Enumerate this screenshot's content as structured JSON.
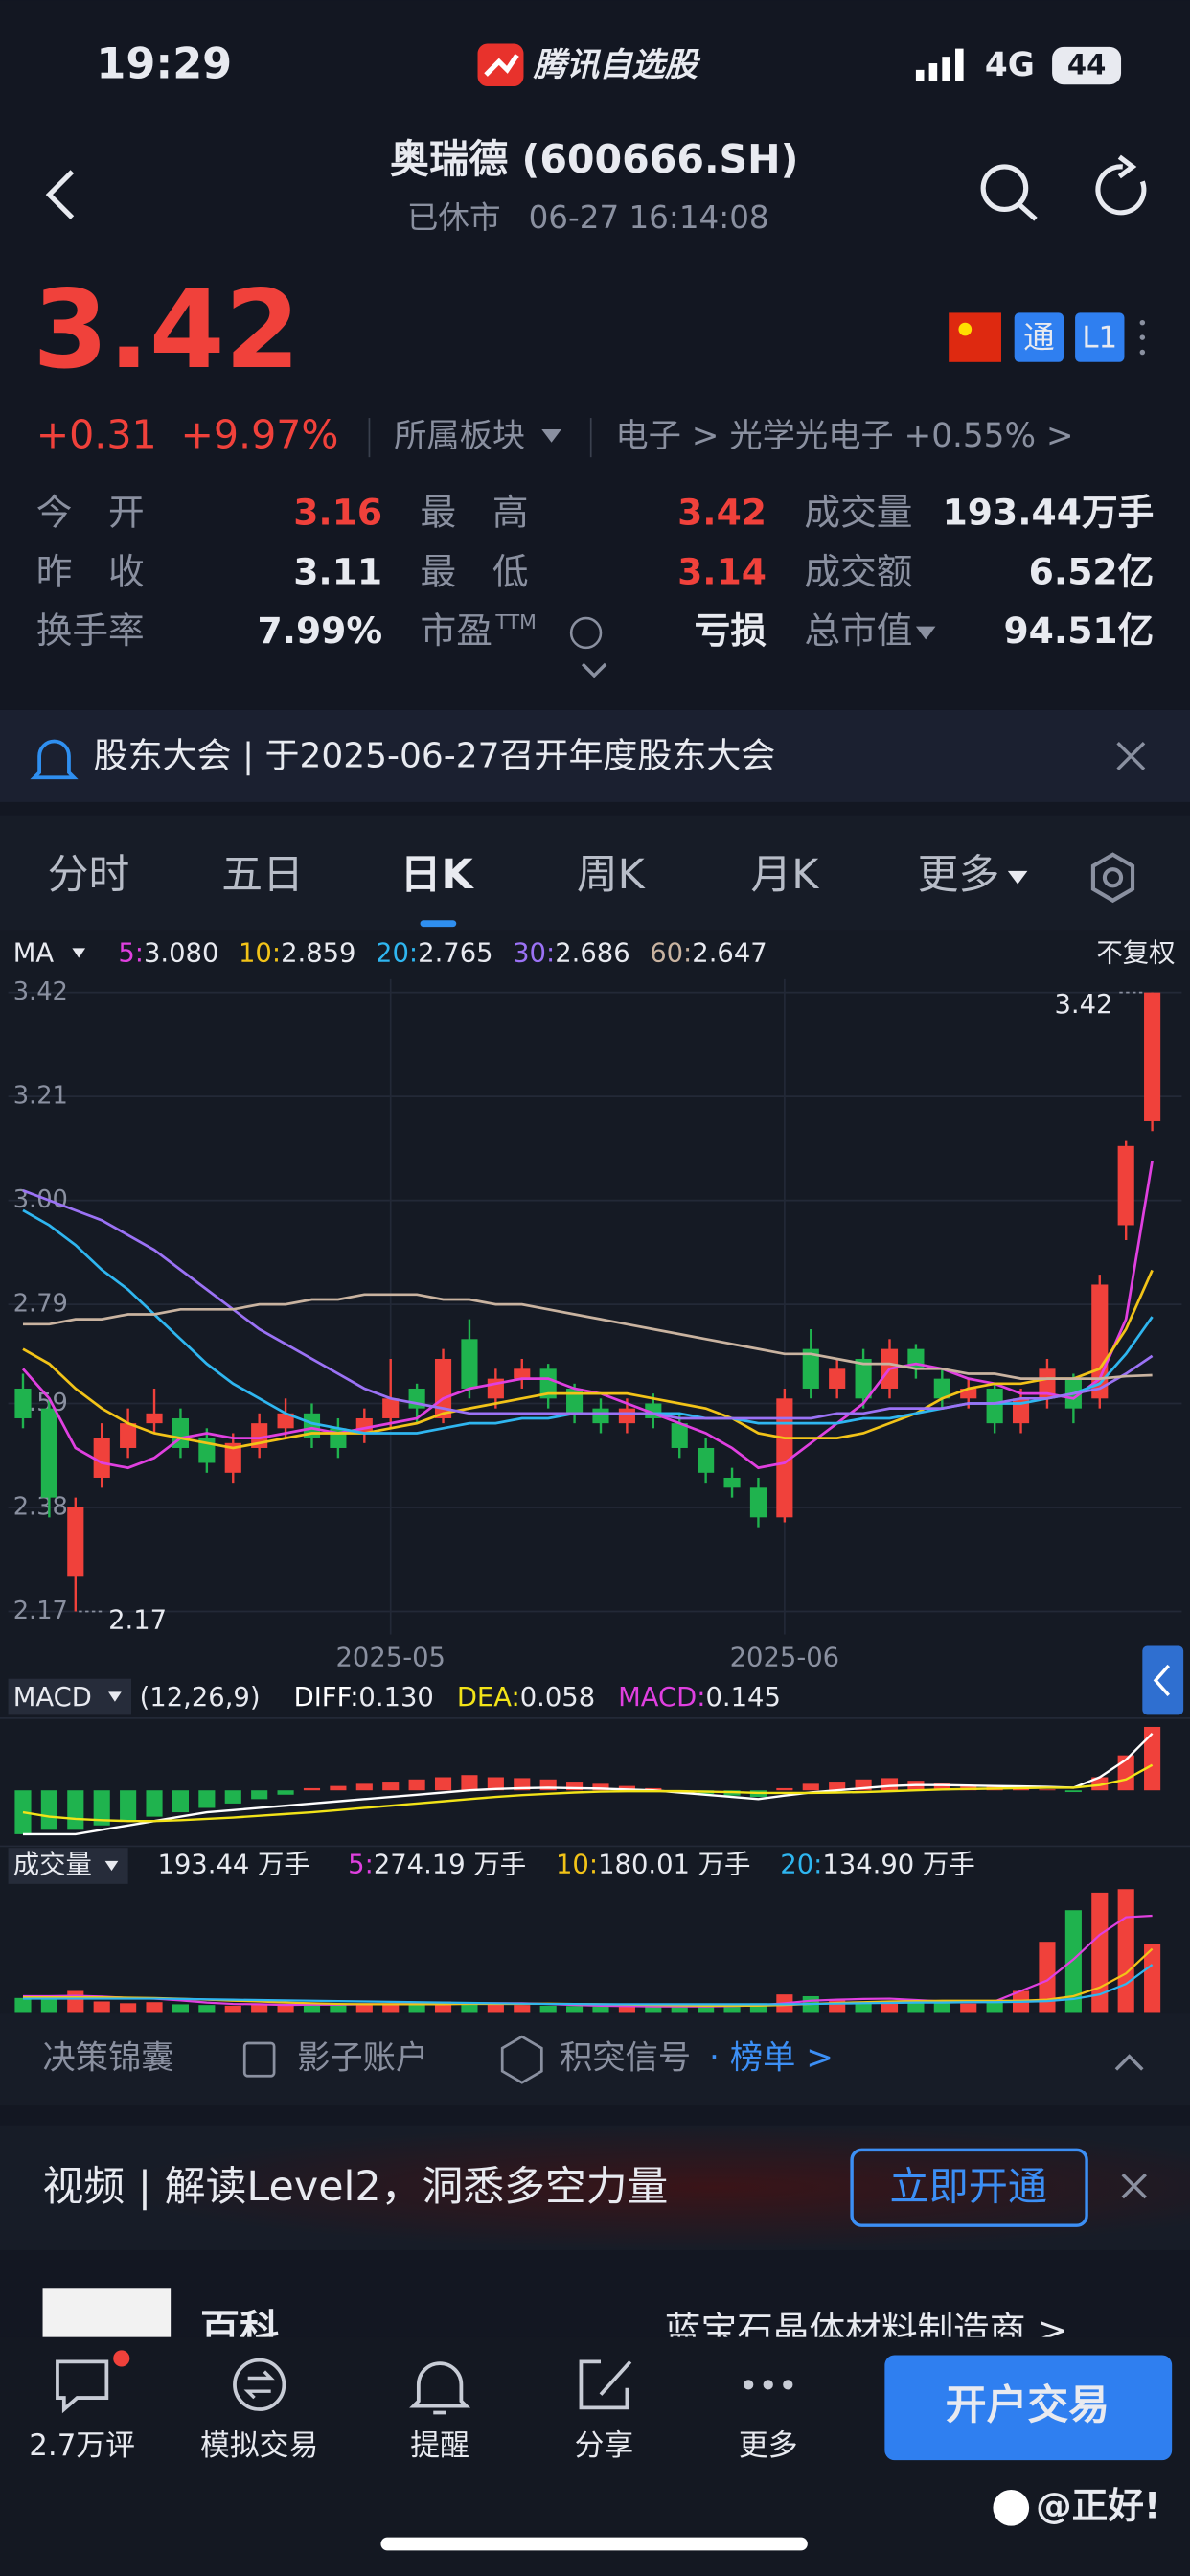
{
  "status": {
    "time": "19:29",
    "app": "腾讯自选股",
    "network": "4G",
    "battery": "44"
  },
  "header": {
    "title": "奥瑞德 (600666.SH)",
    "status": "已休市",
    "datetime": "06-27 16:14:08"
  },
  "quote": {
    "price": "3.42",
    "change": "+0.31",
    "change_pct": "+9.97%",
    "sector_menu": "所属板块",
    "sector_path": "电子 > 光学光电子 +0.55% >",
    "badges": [
      "通",
      "L1"
    ]
  },
  "stats": [
    [
      {
        "label": "今　开",
        "value": "3.16",
        "color": "#f0413b"
      },
      {
        "label": "最　高",
        "value": "3.42",
        "color": "#f0413b"
      },
      {
        "label": "成交量",
        "value": "193.44万手"
      }
    ],
    [
      {
        "label": "昨　收",
        "value": "3.11"
      },
      {
        "label": "最　低",
        "value": "3.14",
        "color": "#f0413b"
      },
      {
        "label": "成交额",
        "value": "6.52亿"
      }
    ],
    [
      {
        "label": "换手率",
        "value": "7.99%"
      },
      {
        "label": "市盈",
        "sup": "TTM",
        "value": "亏损"
      },
      {
        "label": "总市值",
        "value": "94.51亿"
      }
    ]
  ],
  "notice": "股东大会 | 于2025-06-27召开年度股东大会",
  "tabs": [
    "分时",
    "五日",
    "日K",
    "周K",
    "月K",
    "更多"
  ],
  "ma_header": {
    "name": "MA",
    "right": "不复权"
  },
  "chart_data": [
    {
      "type": "candlestick",
      "up_color": "#f0413b",
      "down_color": "#1fb34e",
      "categories": [
        null,
        null,
        null,
        null,
        null,
        null,
        null,
        null,
        null,
        null,
        null,
        null,
        null,
        null,
        "2025-05",
        null,
        null,
        null,
        null,
        null,
        null,
        null,
        null,
        null,
        null,
        null,
        null,
        null,
        null,
        "2025-06",
        null,
        null,
        null,
        null,
        null,
        null,
        null,
        null,
        null,
        null,
        null,
        null,
        null,
        null
      ],
      "open": [
        2.62,
        2.58,
        2.24,
        2.44,
        2.5,
        2.55,
        2.56,
        2.52,
        2.45,
        2.5,
        2.54,
        2.57,
        2.54,
        2.53,
        2.56,
        2.62,
        2.56,
        2.72,
        2.6,
        2.64,
        2.66,
        2.62,
        2.58,
        2.55,
        2.59,
        2.55,
        2.5,
        2.44,
        2.42,
        2.36,
        2.7,
        2.62,
        2.68,
        2.62,
        2.7,
        2.64,
        2.6,
        2.62,
        2.55,
        2.6,
        2.64,
        2.6,
        2.95,
        3.16
      ],
      "close": [
        2.56,
        2.4,
        2.38,
        2.52,
        2.55,
        2.57,
        2.5,
        2.47,
        2.51,
        2.55,
        2.57,
        2.52,
        2.5,
        2.56,
        2.6,
        2.58,
        2.68,
        2.62,
        2.64,
        2.66,
        2.6,
        2.57,
        2.55,
        2.58,
        2.56,
        2.5,
        2.45,
        2.42,
        2.36,
        2.6,
        2.62,
        2.66,
        2.6,
        2.7,
        2.66,
        2.6,
        2.62,
        2.55,
        2.6,
        2.66,
        2.58,
        2.83,
        3.11,
        3.42
      ],
      "high": [
        2.65,
        2.6,
        2.4,
        2.55,
        2.58,
        2.62,
        2.58,
        2.54,
        2.53,
        2.57,
        2.6,
        2.59,
        2.56,
        2.58,
        2.68,
        2.63,
        2.7,
        2.76,
        2.66,
        2.68,
        2.67,
        2.63,
        2.6,
        2.6,
        2.61,
        2.57,
        2.52,
        2.46,
        2.44,
        2.62,
        2.74,
        2.68,
        2.7,
        2.72,
        2.71,
        2.66,
        2.64,
        2.63,
        2.62,
        2.68,
        2.65,
        2.85,
        3.12,
        3.42
      ],
      "low": [
        2.54,
        2.36,
        2.17,
        2.42,
        2.48,
        2.53,
        2.48,
        2.45,
        2.43,
        2.48,
        2.52,
        2.5,
        2.48,
        2.51,
        2.54,
        2.55,
        2.55,
        2.6,
        2.58,
        2.62,
        2.58,
        2.55,
        2.53,
        2.53,
        2.54,
        2.48,
        2.43,
        2.4,
        2.34,
        2.35,
        2.6,
        2.6,
        2.58,
        2.6,
        2.64,
        2.58,
        2.58,
        2.53,
        2.53,
        2.58,
        2.55,
        2.58,
        2.92,
        3.14
      ],
      "ylim": [
        2.17,
        3.42
      ],
      "yticks": [
        3.42,
        3.21,
        {
          "value": 3,
          "label": "3.00"
        },
        2.79,
        2.59,
        2.38,
        2.17
      ],
      "max_label": "3.42",
      "min_label": "2.17",
      "series": [
        {
          "name": "5:",
          "value_label": "3.080",
          "color": "#e040e0",
          "values": [
            2.66,
            2.6,
            2.5,
            2.47,
            2.46,
            2.48,
            2.52,
            2.53,
            2.52,
            2.52,
            2.53,
            2.54,
            2.53,
            2.54,
            2.55,
            2.56,
            2.6,
            2.62,
            2.63,
            2.64,
            2.64,
            2.62,
            2.61,
            2.59,
            2.57,
            2.55,
            2.53,
            2.5,
            2.46,
            2.47,
            2.51,
            2.55,
            2.59,
            2.66,
            2.67,
            2.66,
            2.64,
            2.63,
            2.61,
            2.61,
            2.6,
            2.64,
            2.76,
            3.08
          ]
        },
        {
          "name": "10:",
          "value_label": "2.859",
          "color": "#f2c318",
          "values": [
            2.7,
            2.67,
            2.62,
            2.58,
            2.55,
            2.53,
            2.52,
            2.51,
            2.5,
            2.51,
            2.52,
            2.53,
            2.53,
            2.53,
            2.54,
            2.55,
            2.57,
            2.58,
            2.59,
            2.6,
            2.61,
            2.61,
            2.61,
            2.61,
            2.6,
            2.59,
            2.58,
            2.56,
            2.53,
            2.52,
            2.52,
            2.52,
            2.53,
            2.55,
            2.57,
            2.6,
            2.62,
            2.63,
            2.63,
            2.64,
            2.64,
            2.66,
            2.74,
            2.859
          ]
        },
        {
          "name": "20:",
          "value_label": "2.765",
          "color": "#2fb6f0",
          "values": [
            2.98,
            2.95,
            2.91,
            2.86,
            2.82,
            2.77,
            2.72,
            2.67,
            2.63,
            2.6,
            2.57,
            2.55,
            2.54,
            2.53,
            2.53,
            2.53,
            2.54,
            2.55,
            2.55,
            2.56,
            2.56,
            2.57,
            2.57,
            2.57,
            2.57,
            2.57,
            2.56,
            2.56,
            2.55,
            2.55,
            2.55,
            2.55,
            2.56,
            2.56,
            2.57,
            2.58,
            2.59,
            2.59,
            2.59,
            2.6,
            2.61,
            2.63,
            2.69,
            2.765
          ]
        },
        {
          "name": "30:",
          "value_label": "2.686",
          "color": "#9b72f5",
          "values": [
            3.02,
            3.0,
            2.98,
            2.96,
            2.93,
            2.9,
            2.86,
            2.82,
            2.78,
            2.74,
            2.71,
            2.68,
            2.65,
            2.62,
            2.6,
            2.59,
            2.58,
            2.57,
            2.57,
            2.57,
            2.57,
            2.57,
            2.57,
            2.57,
            2.57,
            2.56,
            2.56,
            2.56,
            2.56,
            2.56,
            2.56,
            2.57,
            2.57,
            2.58,
            2.58,
            2.58,
            2.59,
            2.59,
            2.6,
            2.6,
            2.61,
            2.62,
            2.65,
            2.686
          ]
        },
        {
          "name": "60:",
          "value_label": "2.647",
          "color": "#c9b3a0",
          "values": [
            2.75,
            2.75,
            2.76,
            2.76,
            2.77,
            2.77,
            2.78,
            2.78,
            2.78,
            2.79,
            2.79,
            2.8,
            2.8,
            2.81,
            2.81,
            2.81,
            2.8,
            2.8,
            2.79,
            2.79,
            2.78,
            2.77,
            2.76,
            2.75,
            2.74,
            2.73,
            2.72,
            2.71,
            2.7,
            2.69,
            2.69,
            2.68,
            2.67,
            2.67,
            2.66,
            2.66,
            2.65,
            2.65,
            2.64,
            2.64,
            2.64,
            2.64,
            2.645,
            2.647
          ]
        }
      ]
    },
    {
      "type": "macd",
      "name": "MACD",
      "params": "(12,26,9)",
      "ylim": [
        -0.12,
        0.15
      ],
      "up_color": "#f0413b",
      "down_color": "#1fb34e",
      "values": [
        -0.1,
        -0.09,
        -0.09,
        -0.08,
        -0.07,
        -0.06,
        -0.05,
        -0.04,
        -0.03,
        -0.02,
        -0.01,
        0.005,
        0.01,
        0.015,
        0.02,
        0.025,
        0.03,
        0.035,
        0.03,
        0.028,
        0.025,
        0.02,
        0.015,
        0.01,
        0.005,
        -0.005,
        -0.008,
        -0.012,
        -0.015,
        0.005,
        0.015,
        0.02,
        0.025,
        0.028,
        0.022,
        0.018,
        0.012,
        0.008,
        0.004,
        0.002,
        -0.004,
        0.03,
        0.08,
        0.145
      ],
      "legend": [
        {
          "name": "DIFF:",
          "value_label": "0.130",
          "color": "#ffffff"
        },
        {
          "name": "DEA:",
          "value_label": "0.058",
          "color": "#f2e318"
        },
        {
          "name": "MACD:",
          "value_label": "0.145",
          "color": "#e040e0"
        }
      ],
      "series": [
        {
          "name": "DIFF",
          "color": "#ffffff",
          "values": [
            -0.1,
            -0.1,
            -0.1,
            -0.09,
            -0.08,
            -0.07,
            -0.06,
            -0.05,
            -0.045,
            -0.04,
            -0.035,
            -0.03,
            -0.025,
            -0.02,
            -0.015,
            -0.01,
            -0.005,
            0,
            0.003,
            0.005,
            0.006,
            0.005,
            0.004,
            0.002,
            0,
            -0.005,
            -0.01,
            -0.015,
            -0.02,
            -0.012,
            -0.005,
            0,
            0.005,
            0.01,
            0.012,
            0.012,
            0.011,
            0.01,
            0.009,
            0.008,
            0.006,
            0.03,
            0.07,
            0.13
          ]
        },
        {
          "name": "DEA",
          "color": "#f2e318",
          "values": [
            -0.05,
            -0.06,
            -0.065,
            -0.068,
            -0.07,
            -0.07,
            -0.068,
            -0.065,
            -0.062,
            -0.058,
            -0.054,
            -0.05,
            -0.045,
            -0.04,
            -0.035,
            -0.03,
            -0.025,
            -0.02,
            -0.015,
            -0.011,
            -0.008,
            -0.005,
            -0.003,
            -0.002,
            -0.002,
            -0.002,
            -0.003,
            -0.004,
            -0.006,
            -0.006,
            -0.006,
            -0.005,
            -0.004,
            -0.002,
            0,
            0.002,
            0.003,
            0.004,
            0.005,
            0.006,
            0.006,
            0.012,
            0.025,
            0.058
          ]
        }
      ]
    },
    {
      "type": "volume",
      "name": "成交量",
      "current": "193.44 万手",
      "ylim": [
        0,
        360
      ],
      "values": [
        40,
        45,
        60,
        30,
        25,
        28,
        22,
        20,
        18,
        22,
        20,
        25,
        22,
        20,
        24,
        26,
        30,
        25,
        22,
        20,
        18,
        17,
        16,
        15,
        16,
        15,
        18,
        20,
        25,
        50,
        45,
        35,
        30,
        32,
        28,
        25,
        24,
        26,
        60,
        200,
        290,
        340,
        350,
        193.44
      ],
      "series": [
        {
          "name": "5:",
          "value_label": "274.19 万手",
          "color": "#e040e0",
          "values": [
            45,
            45,
            46,
            44,
            40,
            38,
            33,
            27,
            23,
            22,
            20,
            21,
            21,
            22,
            22,
            23,
            24,
            25,
            25,
            25,
            23,
            20,
            18,
            17,
            16,
            16,
            16,
            17,
            19,
            25,
            32,
            35,
            37,
            38,
            34,
            30,
            28,
            30,
            60,
            90,
            150,
            220,
            270,
            274.19
          ]
        },
        {
          "name": "10:",
          "value_label": "180.01 万手",
          "color": "#f2c318",
          "values": [
            42,
            42,
            42,
            42,
            41,
            40,
            38,
            35,
            32,
            30,
            27,
            25,
            23,
            22,
            22,
            22,
            22,
            23,
            23,
            23,
            24,
            23,
            22,
            21,
            20,
            19,
            18,
            18,
            18,
            20,
            23,
            26,
            28,
            30,
            31,
            32,
            32,
            32,
            32,
            35,
            45,
            70,
            110,
            180.01
          ]
        },
        {
          "name": "20:",
          "value_label": "134.90 万手",
          "color": "#2fb6f0",
          "values": [
            38,
            38,
            38,
            38,
            38,
            38,
            37,
            36,
            35,
            34,
            33,
            32,
            31,
            30,
            29,
            28,
            27,
            26,
            25,
            24,
            23,
            23,
            22,
            22,
            22,
            22,
            22,
            22,
            22,
            22,
            23,
            24,
            25,
            26,
            27,
            27,
            28,
            28,
            29,
            31,
            37,
            50,
            80,
            134.9
          ]
        }
      ]
    }
  ],
  "tools": [
    "决策锦囊",
    "影子账户",
    "积突信号"
  ],
  "tools_link": "· 榜单 >",
  "ad": {
    "text": "视频 | 解读Level2，洞悉多空力量",
    "button": "立即开通"
  },
  "peek": {
    "name": "百科",
    "desc": "蓝宝石晶体材料制造商 >"
  },
  "nav": [
    "2.7万评",
    "模拟交易",
    "提醒",
    "分享",
    "更多"
  ],
  "nav_button": "开户交易",
  "watermark": "@正好!"
}
